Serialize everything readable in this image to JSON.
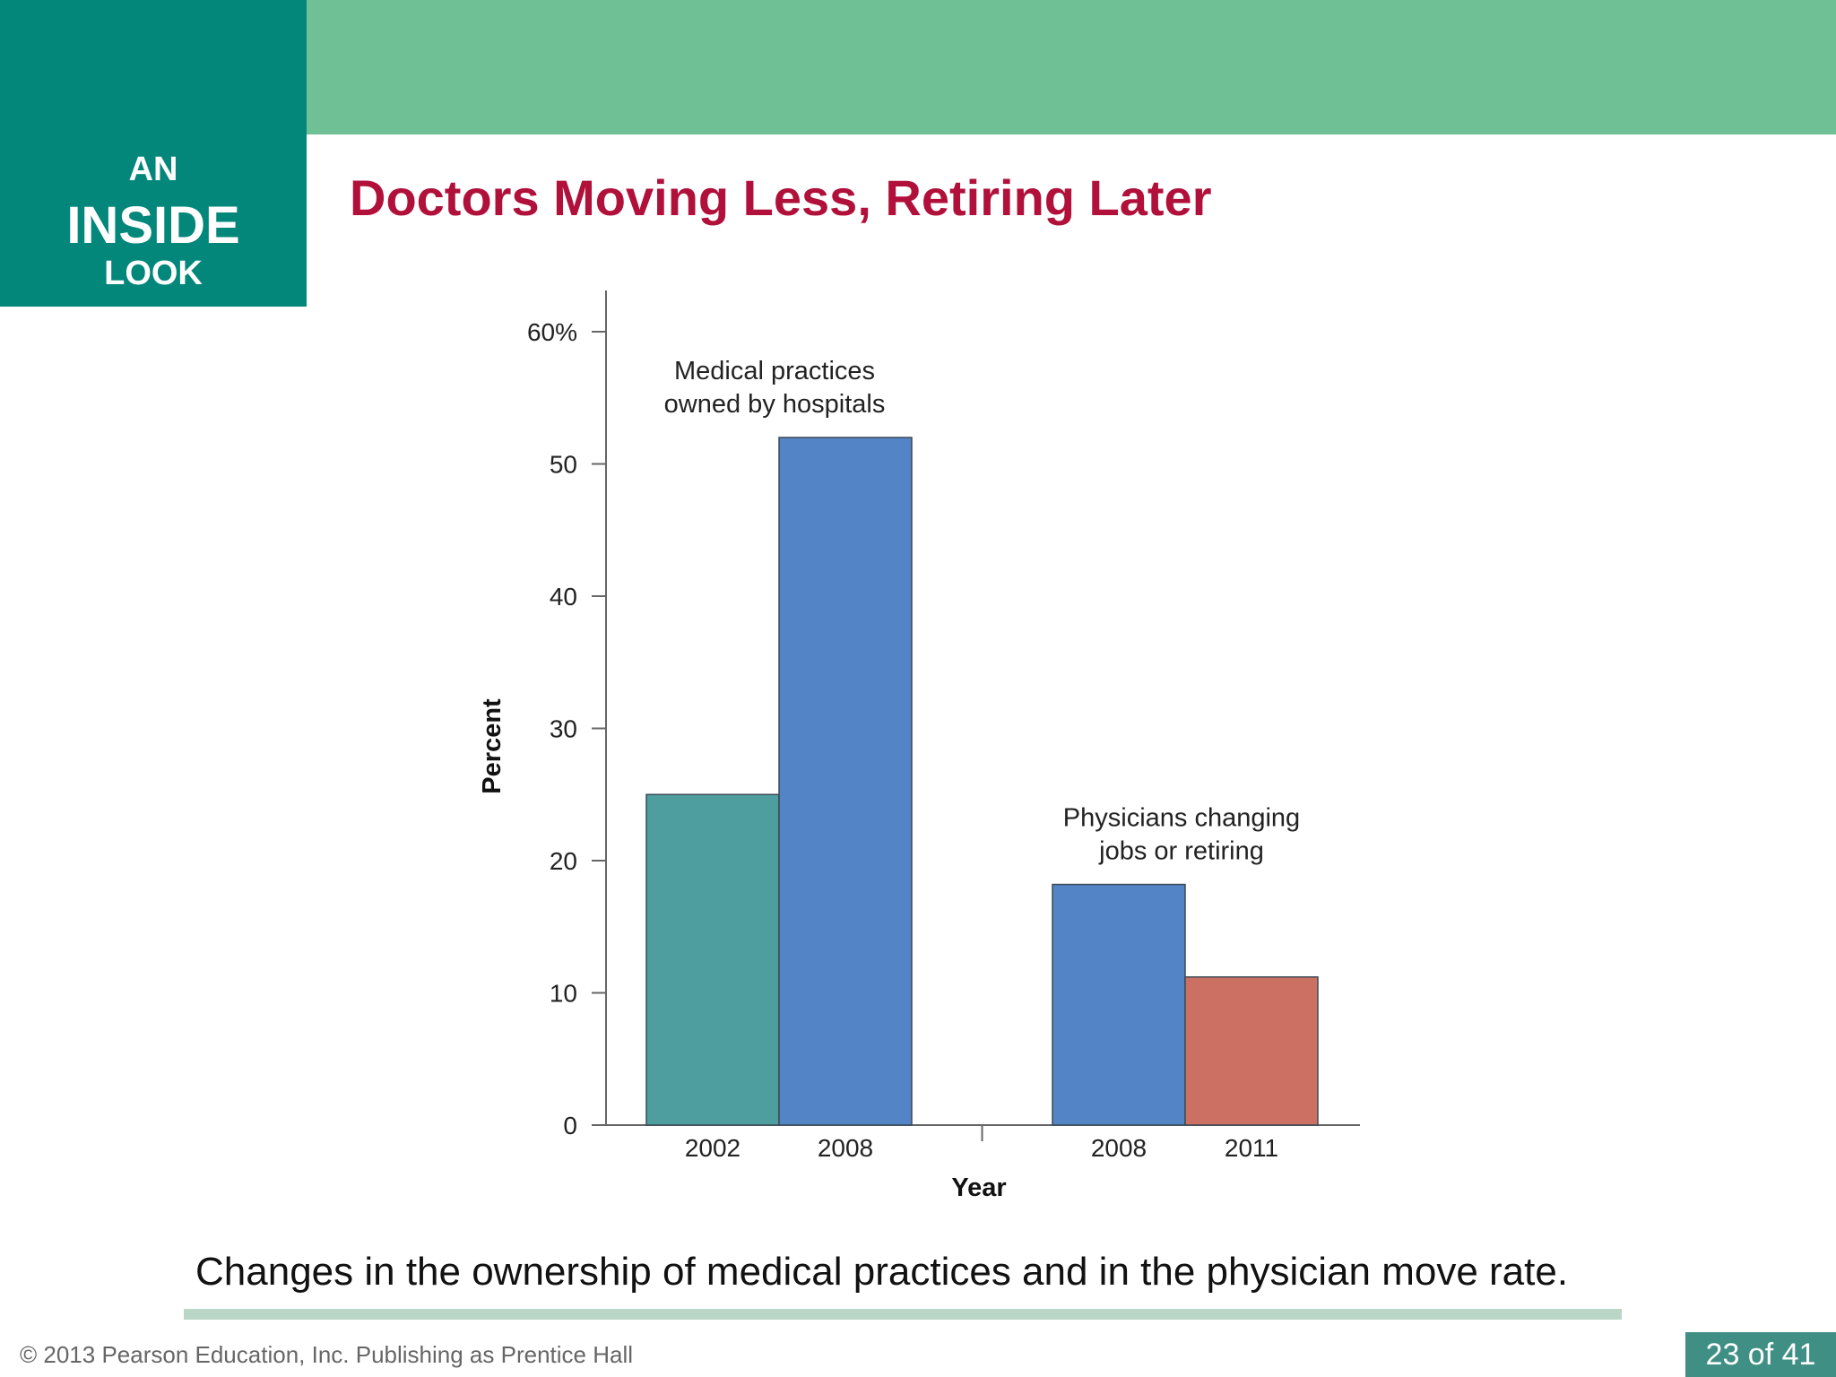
{
  "badge": {
    "line1": "AN",
    "line2": "INSIDE",
    "line3": "LOOK"
  },
  "slide": {
    "title": "Doctors Moving Less, Retiring Later",
    "caption": "Changes in the ownership of medical practices and in the physician move rate.",
    "footer": "© 2013 Pearson Education, Inc. Publishing as Prentice Hall",
    "page": "23 of 41"
  },
  "colors": {
    "band": "#70c095",
    "badge": "#02877a",
    "title": "#b0103a",
    "bar_teal": "#4e9e9f",
    "bar_blue": "#5284c6",
    "bar_red": "#cc7064"
  },
  "chart_data": {
    "type": "bar",
    "xlabel": "Year",
    "ylabel": "Percent",
    "ylim": [
      0,
      60
    ],
    "yticks": [
      {
        "value": 0,
        "label": "0"
      },
      {
        "value": 10,
        "label": "10"
      },
      {
        "value": 20,
        "label": "20"
      },
      {
        "value": 30,
        "label": "30"
      },
      {
        "value": 40,
        "label": "40"
      },
      {
        "value": 50,
        "label": "50"
      },
      {
        "value": 60,
        "label": "60%"
      }
    ],
    "groups": [
      {
        "annotation": [
          "Medical practices",
          "owned by hospitals"
        ],
        "bars": [
          {
            "category": "2002",
            "value": 25,
            "color": "#4e9e9f"
          },
          {
            "category": "2008",
            "value": 52,
            "color": "#5284c6"
          }
        ]
      },
      {
        "annotation": [
          "Physicians changing",
          "jobs or retiring"
        ],
        "bars": [
          {
            "category": "2008",
            "value": 18.2,
            "color": "#5284c6"
          },
          {
            "category": "2011",
            "value": 11.2,
            "color": "#cc7064"
          }
        ]
      }
    ],
    "grid": false,
    "legend": "none"
  }
}
